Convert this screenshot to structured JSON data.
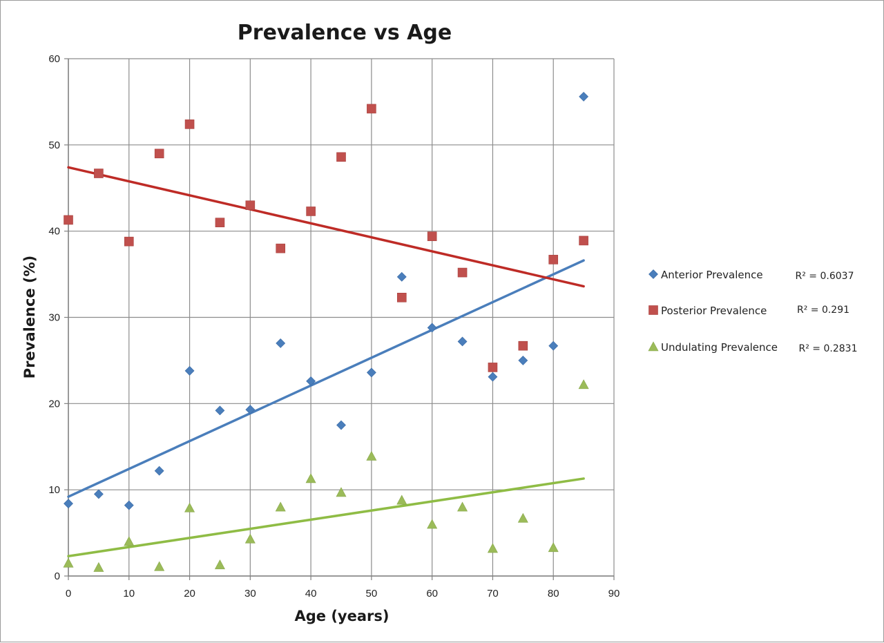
{
  "chart_data": {
    "type": "scatter",
    "title": "Prevalence vs Age",
    "xlabel": "Age (years)",
    "ylabel": "Prevalence (%)",
    "xlim": [
      0,
      90
    ],
    "ylim": [
      0,
      60
    ],
    "xticks": [
      0,
      10,
      20,
      30,
      40,
      50,
      60,
      70,
      80,
      90
    ],
    "yticks": [
      0,
      10,
      20,
      30,
      40,
      50,
      60
    ],
    "grid": true,
    "legend_position": "right",
    "series": [
      {
        "name": "Anterior Prevalence",
        "marker": "diamond",
        "color": "#4a7ebb",
        "trend_color": "#4a7ebb",
        "r2_label": "R² = 0.6037",
        "trendline": {
          "x": [
            0,
            85
          ],
          "y": [
            9.2,
            36.6
          ]
        },
        "x": [
          0,
          5,
          10,
          15,
          20,
          25,
          30,
          35,
          40,
          45,
          50,
          55,
          60,
          65,
          70,
          75,
          80,
          85
        ],
        "y": [
          8.4,
          9.5,
          8.2,
          12.2,
          23.8,
          19.2,
          19.3,
          27.0,
          22.6,
          17.5,
          23.6,
          34.7,
          28.8,
          27.2,
          23.1,
          25.0,
          26.7,
          55.6
        ]
      },
      {
        "name": "Posterior Prevalence",
        "marker": "square",
        "color": "#c0504d",
        "trend_color": "#be2b26",
        "r2_label": "R² = 0.291",
        "trendline": {
          "x": [
            0,
            85
          ],
          "y": [
            47.4,
            33.6
          ]
        },
        "x": [
          0,
          5,
          10,
          15,
          20,
          25,
          30,
          35,
          40,
          45,
          50,
          55,
          60,
          65,
          70,
          75,
          80,
          85
        ],
        "y": [
          41.3,
          46.7,
          38.8,
          49.0,
          52.4,
          41.0,
          43.0,
          38.0,
          42.3,
          48.6,
          54.2,
          32.3,
          39.4,
          35.2,
          24.2,
          26.7,
          36.7,
          38.9
        ]
      },
      {
        "name": "Undulating Prevalence",
        "marker": "triangle",
        "color": "#9bbb59",
        "trend_color": "#8fbc45",
        "r2_label": "R² = 0.2831",
        "trendline": {
          "x": [
            0,
            85
          ],
          "y": [
            2.3,
            11.3
          ]
        },
        "x": [
          0,
          5,
          10,
          15,
          20,
          25,
          30,
          35,
          40,
          45,
          50,
          55,
          60,
          65,
          70,
          75,
          80,
          85
        ],
        "y": [
          1.5,
          1.0,
          4.0,
          1.1,
          7.9,
          1.3,
          4.3,
          8.0,
          11.3,
          9.7,
          13.9,
          8.8,
          6.0,
          8.0,
          3.2,
          6.7,
          3.3,
          22.2
        ]
      }
    ]
  }
}
